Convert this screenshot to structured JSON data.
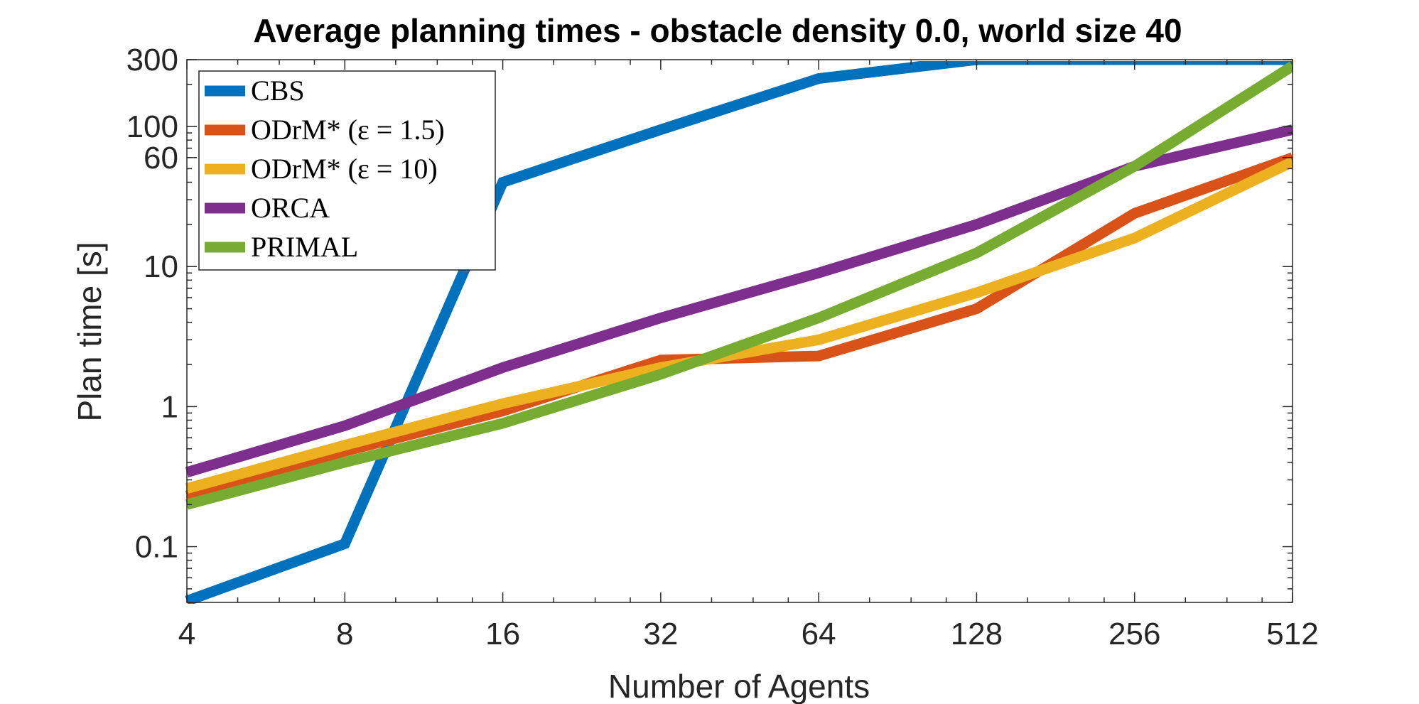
{
  "chart_data": {
    "type": "line",
    "title": "Average planning times - obstacle density 0.0, world size 40",
    "xlabel": "Number of Agents",
    "ylabel": "Plan time [s]",
    "x": [
      4,
      8,
      16,
      32,
      64,
      128,
      256,
      512
    ],
    "x_scale": "log2",
    "y_scale": "log10",
    "xlim": [
      4,
      512
    ],
    "ylim": [
      0.04,
      300
    ],
    "xticks": [
      "4",
      "8",
      "16",
      "32",
      "64",
      "128",
      "256",
      "512"
    ],
    "yticks": [
      {
        "value": 0.1,
        "label": "0.1"
      },
      {
        "value": 1,
        "label": "1"
      },
      {
        "value": 10,
        "label": "10"
      },
      {
        "value": 60,
        "label": "60"
      },
      {
        "value": 100,
        "label": "100"
      },
      {
        "value": 300,
        "label": "300"
      }
    ],
    "grid": false,
    "legend_position": "top-left",
    "series": [
      {
        "name": "CBS",
        "color": "#0072BD",
        "values": [
          0.041,
          0.105,
          40,
          95,
          220,
          300,
          300,
          300
        ]
      },
      {
        "name": "ODrM* (ε = 1.5)",
        "color": "#D95319",
        "values": [
          0.23,
          0.48,
          0.93,
          2.15,
          2.3,
          5.0,
          24,
          60
        ]
      },
      {
        "name": "ODrM* (ε = 10)",
        "color": "#EDB120",
        "values": [
          0.26,
          0.53,
          1.05,
          1.9,
          3.0,
          6.5,
          16,
          56
        ]
      },
      {
        "name": "ORCA",
        "color": "#7E2F8E",
        "values": [
          0.34,
          0.73,
          1.9,
          4.3,
          9.0,
          20,
          52,
          95
        ]
      },
      {
        "name": "PRIMAL",
        "color": "#77AC30",
        "values": [
          0.2,
          0.4,
          0.76,
          1.7,
          4.3,
          12.5,
          52,
          270
        ]
      }
    ]
  }
}
